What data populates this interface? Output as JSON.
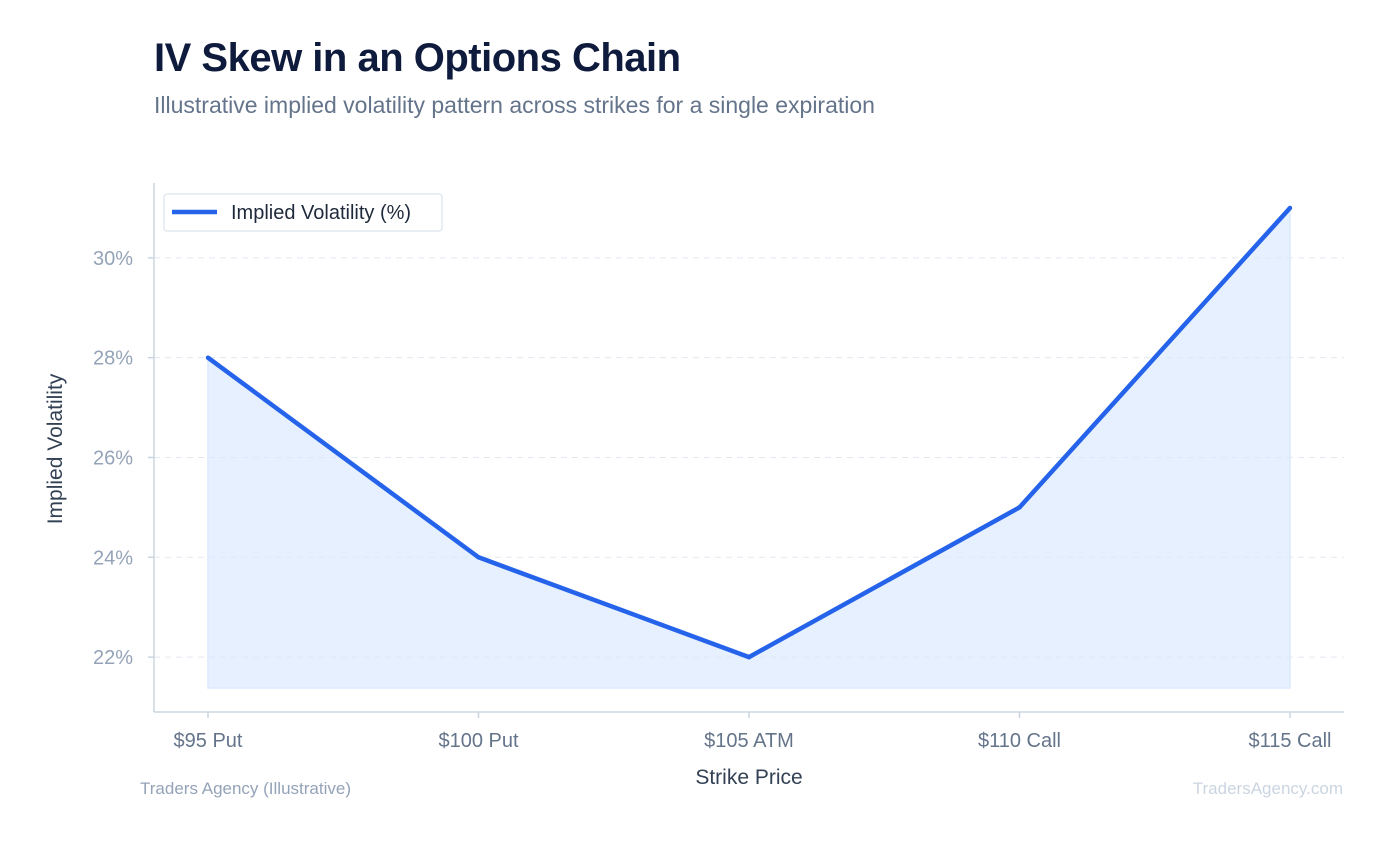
{
  "header": {
    "title": "IV Skew in an Options Chain",
    "subtitle": "Illustrative implied volatility pattern across strikes for a single expiration"
  },
  "footer": {
    "source": "Traders Agency (Illustrative)",
    "watermark": "TradersAgency.com"
  },
  "colors": {
    "line": "#2563eb",
    "fill": "#dbeafe",
    "grid": "#e2e8f0",
    "axis": "#cbd5e1",
    "tick_text": "#94a3b8",
    "x_tick_text": "#64748b",
    "label_text": "#334155"
  },
  "chart_data": {
    "type": "area",
    "title": "IV Skew in an Options Chain",
    "subtitle": "Illustrative implied volatility pattern across strikes for a single expiration",
    "xlabel": "Strike Price",
    "ylabel": "Implied Volatility",
    "categories": [
      "$95 Put",
      "$100 Put",
      "$105 ATM",
      "$110 Call",
      "$115 Call"
    ],
    "series": [
      {
        "name": "Implied Volatility (%)",
        "values": [
          28,
          24,
          22,
          25,
          31
        ]
      }
    ],
    "yticks": [
      22,
      24,
      26,
      28,
      30
    ],
    "ytick_labels": [
      "22%",
      "24%",
      "26%",
      "28%",
      "30%"
    ],
    "ylim": [
      20.9,
      31.5
    ],
    "grid": true,
    "legend": "top-left"
  }
}
